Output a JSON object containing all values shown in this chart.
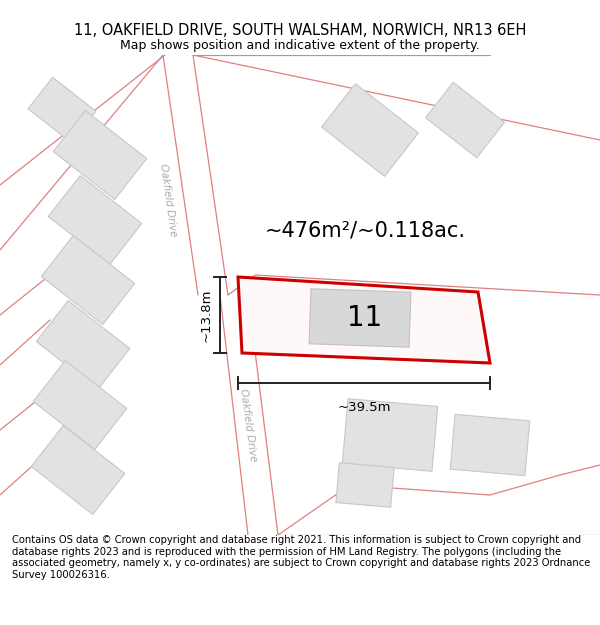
{
  "title": "11, OAKFIELD DRIVE, SOUTH WALSHAM, NORWICH, NR13 6EH",
  "subtitle": "Map shows position and indicative extent of the property.",
  "footer": "Contains OS data © Crown copyright and database right 2021. This information is subject to Crown copyright and database rights 2023 and is reproduced with the permission of HM Land Registry. The polygons (including the associated geometry, namely x, y co-ordinates) are subject to Crown copyright and database rights 2023 Ordnance Survey 100026316.",
  "area_label": "~476m²/~0.118ac.",
  "width_label": "~39.5m",
  "height_label": "~13.8m",
  "plot_number": "11",
  "bg_color": "#ffffff",
  "map_bg": "#ffffff",
  "road_fill": "#f5cccc",
  "road_edge": "#e08080",
  "building_fill": "#e2e2e2",
  "building_edge": "#c8c8c8",
  "plot_fill": "#fff8f8",
  "plot_edge": "#cc0000",
  "plot_edge_width": 2.2,
  "dim_color": "#222222",
  "misc_line_color": "#e08080",
  "road_label_color": "#aaaaaa",
  "title_fontsize": 10.5,
  "subtitle_fontsize": 9,
  "footer_fontsize": 7.2,
  "area_fontsize": 15,
  "num_fontsize": 20,
  "dim_fontsize": 9.5,
  "road_fontsize": 7.5
}
